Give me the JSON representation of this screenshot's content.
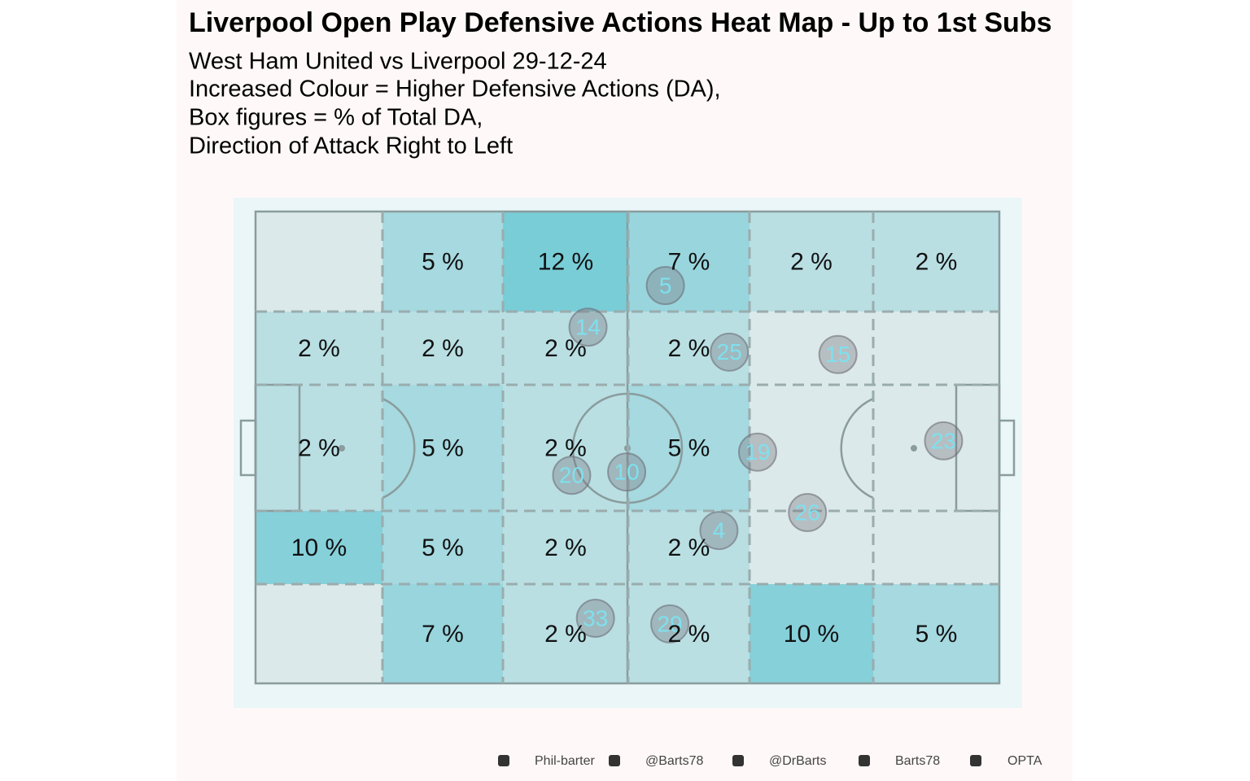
{
  "chart_data": {
    "type": "heatmap",
    "title": "Liverpool  Open Play Defensive Actions Heat Map - Up to 1st Subs",
    "subtitle": [
      "West Ham United vs Liverpool 29-12-24",
      "Increased Colour = Higher Defensive Actions (DA),",
      "Box figures = % of Total DA,",
      "Direction of Attack Right to Left"
    ],
    "color": "#4fc0cf",
    "values": [
      [
        null,
        5,
        12,
        7,
        2,
        2
      ],
      [
        2,
        2,
        2,
        2,
        null,
        null
      ],
      [
        2,
        5,
        2,
        5,
        null,
        null
      ],
      [
        10,
        5,
        2,
        2,
        null,
        null
      ],
      [
        null,
        7,
        2,
        2,
        10,
        5
      ]
    ],
    "value_labels": [
      [
        null,
        "5 %",
        "12 %",
        "7 %",
        "2 %",
        "2 %"
      ],
      [
        "2 %",
        "2 %",
        "2 %",
        "2 %",
        null,
        null
      ],
      [
        "2 %",
        "5 %",
        "2 %",
        "5 %",
        null,
        null
      ],
      [
        "10 %",
        "5 %",
        "2 %",
        "2 %",
        null,
        null
      ],
      [
        null,
        "7 %",
        "2 %",
        "2 %",
        "10 %",
        "5 %"
      ]
    ],
    "xlim": [
      0,
      100
    ],
    "ylim": [
      0,
      100
    ],
    "players": [
      {
        "label": "5",
        "x": 55.1,
        "y": 15.7
      },
      {
        "label": "14",
        "x": 44.7,
        "y": 24.5
      },
      {
        "label": "25",
        "x": 63.7,
        "y": 29.8
      },
      {
        "label": "15",
        "x": 78.3,
        "y": 30.3
      },
      {
        "label": "19",
        "x": 67.5,
        "y": 51.0
      },
      {
        "label": "23",
        "x": 92.5,
        "y": 48.6
      },
      {
        "label": "20",
        "x": 42.5,
        "y": 55.9
      },
      {
        "label": "10",
        "x": 49.9,
        "y": 55.2
      },
      {
        "label": "26",
        "x": 74.2,
        "y": 63.8
      },
      {
        "label": "4",
        "x": 62.3,
        "y": 67.6
      },
      {
        "label": "33",
        "x": 45.7,
        "y": 86.2
      },
      {
        "label": "29",
        "x": 55.7,
        "y": 87.4
      }
    ],
    "credits": [
      "Phil-barter",
      "@Barts78",
      "@DrBarts",
      "Barts78",
      "OPTA"
    ]
  }
}
